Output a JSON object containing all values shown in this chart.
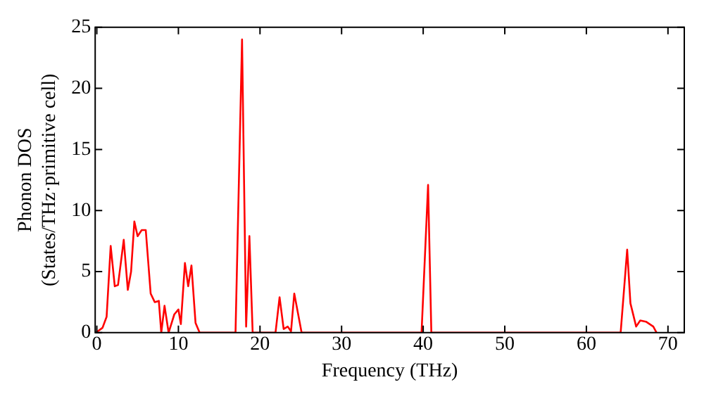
{
  "chart_data": {
    "type": "line",
    "xlabel": "Frequency (THz)",
    "ylabel": "Phonon DOS\n(States/THz·primitive cell)",
    "x": [
      -0.1,
      0.7,
      1.2,
      1.7,
      2.2,
      2.6,
      3.3,
      3.8,
      4.2,
      4.6,
      5.0,
      5.5,
      6.0,
      6.6,
      7.1,
      7.6,
      7.9,
      8.3,
      8.8,
      9.5,
      10.0,
      10.3,
      10.8,
      11.2,
      11.6,
      12.1,
      12.6,
      17.0,
      17.8,
      18.3,
      18.7,
      19.1,
      21.9,
      22.4,
      22.9,
      23.4,
      23.8,
      24.2,
      25.1,
      39.8,
      40.6,
      41.0,
      64.2,
      65.0,
      65.4,
      66.1,
      66.6,
      67.3,
      68.2,
      68.6
    ],
    "series": [
      {
        "color": "#ff0000",
        "values": [
          0,
          0.4,
          1.3,
          7.1,
          3.8,
          3.9,
          7.6,
          3.5,
          5.0,
          9.1,
          7.9,
          8.4,
          8.4,
          3.2,
          2.5,
          2.6,
          0,
          2.2,
          0,
          1.5,
          1.9,
          0.7,
          5.7,
          3.8,
          5.5,
          0.8,
          0,
          0,
          24.0,
          0.5,
          7.9,
          0,
          0,
          2.9,
          0.3,
          0.5,
          0.1,
          3.2,
          0,
          0,
          12.1,
          0,
          0,
          6.8,
          2.4,
          0.5,
          1.0,
          0.9,
          0.5,
          0
        ]
      }
    ],
    "xlim": [
      -0.2,
      72
    ],
    "ylim": [
      0,
      25
    ],
    "xticks": [
      0,
      10,
      20,
      30,
      40,
      50,
      60,
      70
    ],
    "yticks": [
      0,
      5,
      10,
      15,
      20,
      25
    ],
    "grid": false,
    "legend": false,
    "marker": "none",
    "line_style": "solid"
  }
}
